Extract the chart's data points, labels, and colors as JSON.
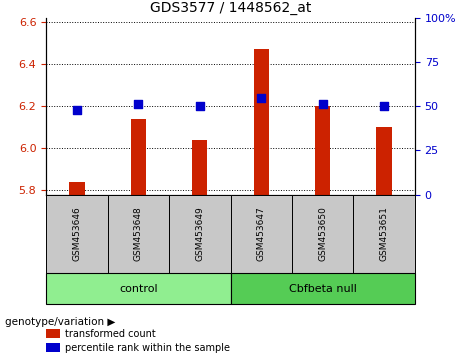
{
  "title": "GDS3577 / 1448562_at",
  "samples": [
    "GSM453646",
    "GSM453648",
    "GSM453649",
    "GSM453647",
    "GSM453650",
    "GSM453651"
  ],
  "red_values": [
    5.84,
    6.14,
    6.04,
    6.47,
    6.2,
    6.1
  ],
  "blue_values": [
    6.18,
    6.21,
    6.2,
    6.24,
    6.21,
    6.2
  ],
  "ylim_left": [
    5.78,
    6.62
  ],
  "ylim_right": [
    0,
    100
  ],
  "yticks_left": [
    5.8,
    6.0,
    6.2,
    6.4,
    6.6
  ],
  "yticks_right": [
    0,
    25,
    50,
    75,
    100
  ],
  "groups": [
    {
      "label": "control",
      "indices": [
        0,
        1,
        2
      ],
      "color": "#90EE90"
    },
    {
      "label": "Cbfbeta null",
      "indices": [
        3,
        4,
        5
      ],
      "color": "#55CC55"
    }
  ],
  "bar_color": "#CC2200",
  "dot_color": "#0000CC",
  "bar_width": 0.25,
  "dot_size": 40,
  "background_label": "#C8C8C8",
  "left_tick_color": "#CC2200",
  "right_tick_color": "#0000CC",
  "legend_red_label": "transformed count",
  "legend_blue_label": "percentile rank within the sample",
  "genotype_label": "genotype/variation",
  "ylabel_right_ticks": [
    "0",
    "25",
    "50",
    "75",
    "100%"
  ]
}
